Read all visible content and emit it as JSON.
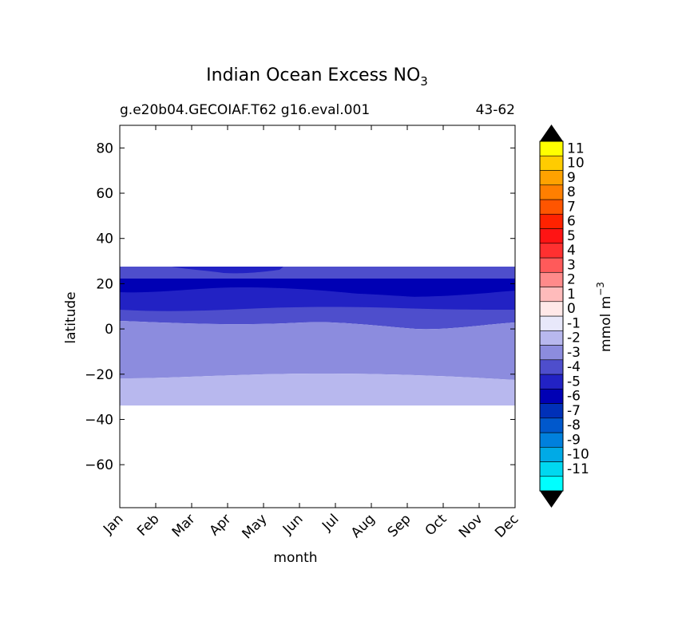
{
  "chart_data": {
    "type": "heatmap",
    "title": "Indian Ocean Excess NO",
    "title_subscript": "3",
    "subtitle_left": "g.e20b04.GECOIAF.T62 g16.eval.001",
    "subtitle_right": "43-62",
    "xlabel": "month",
    "ylabel": "latitude",
    "x_categories": [
      "Jan",
      "Feb",
      "Mar",
      "Apr",
      "May",
      "Jun",
      "Jul",
      "Aug",
      "Sep",
      "Oct",
      "Nov",
      "Dec"
    ],
    "yticks": [
      "80",
      "60",
      "40",
      "20",
      "0",
      "−20",
      "−40",
      "−60"
    ],
    "ytick_values": [
      80,
      60,
      40,
      20,
      0,
      -20,
      -40,
      -60
    ],
    "ylim": [
      -79,
      90
    ],
    "data_extent_lat": [
      -34,
      27.5
    ],
    "colorbar_label": "mmol m",
    "colorbar_label_sup": "−3",
    "levels": [
      -11,
      -10,
      -9,
      -8,
      -7,
      -6,
      -5,
      -4,
      -3,
      -2,
      -1,
      0,
      1,
      2,
      3,
      4,
      5,
      6,
      7,
      8,
      9,
      10,
      11
    ],
    "level_labels": [
      "11",
      "10",
      "9",
      "8",
      "7",
      "6",
      "5",
      "4",
      "3",
      "2",
      "1",
      "0",
      "-1",
      "-2",
      "-3",
      "-4",
      "-5",
      "-6",
      "-7",
      "-8",
      "-9",
      "-10",
      "-11"
    ],
    "colors": [
      "#00ffff",
      "#00d8f0",
      "#00aae6",
      "#0080dd",
      "#0058cc",
      "#0030b8",
      "#0000b4",
      "#2222c4",
      "#4e4ecc",
      "#8c8cde",
      "#b8b8ee",
      "#e8e8fa",
      "#ffe8e8",
      "#ffbbbb",
      "#ff8a8a",
      "#ff5a5a",
      "#ff3030",
      "#ff1414",
      "#ff2200",
      "#ff5500",
      "#ff7f00",
      "#ffa200",
      "#ffcc00",
      "#ffff00"
    ],
    "bands": [
      {
        "value_range": [
          -3,
          -2
        ],
        "lat_top": 27.5,
        "lat_bottom": 22.5
      },
      {
        "value_range": [
          -6,
          -5
        ],
        "lat_top": 22.5,
        "lat_bottom": 12
      },
      {
        "value_range": [
          -5,
          -4
        ],
        "lat_top": 15,
        "lat_bottom": 7.5
      },
      {
        "value_range": [
          -4,
          -3
        ],
        "lat_top": 9,
        "lat_bottom": 1
      },
      {
        "value_range": [
          -3,
          -2
        ],
        "lat_top": 3,
        "lat_bottom": -21
      },
      {
        "value_range": [
          -2,
          -1
        ],
        "lat_top": -21,
        "lat_bottom": -34
      }
    ]
  }
}
